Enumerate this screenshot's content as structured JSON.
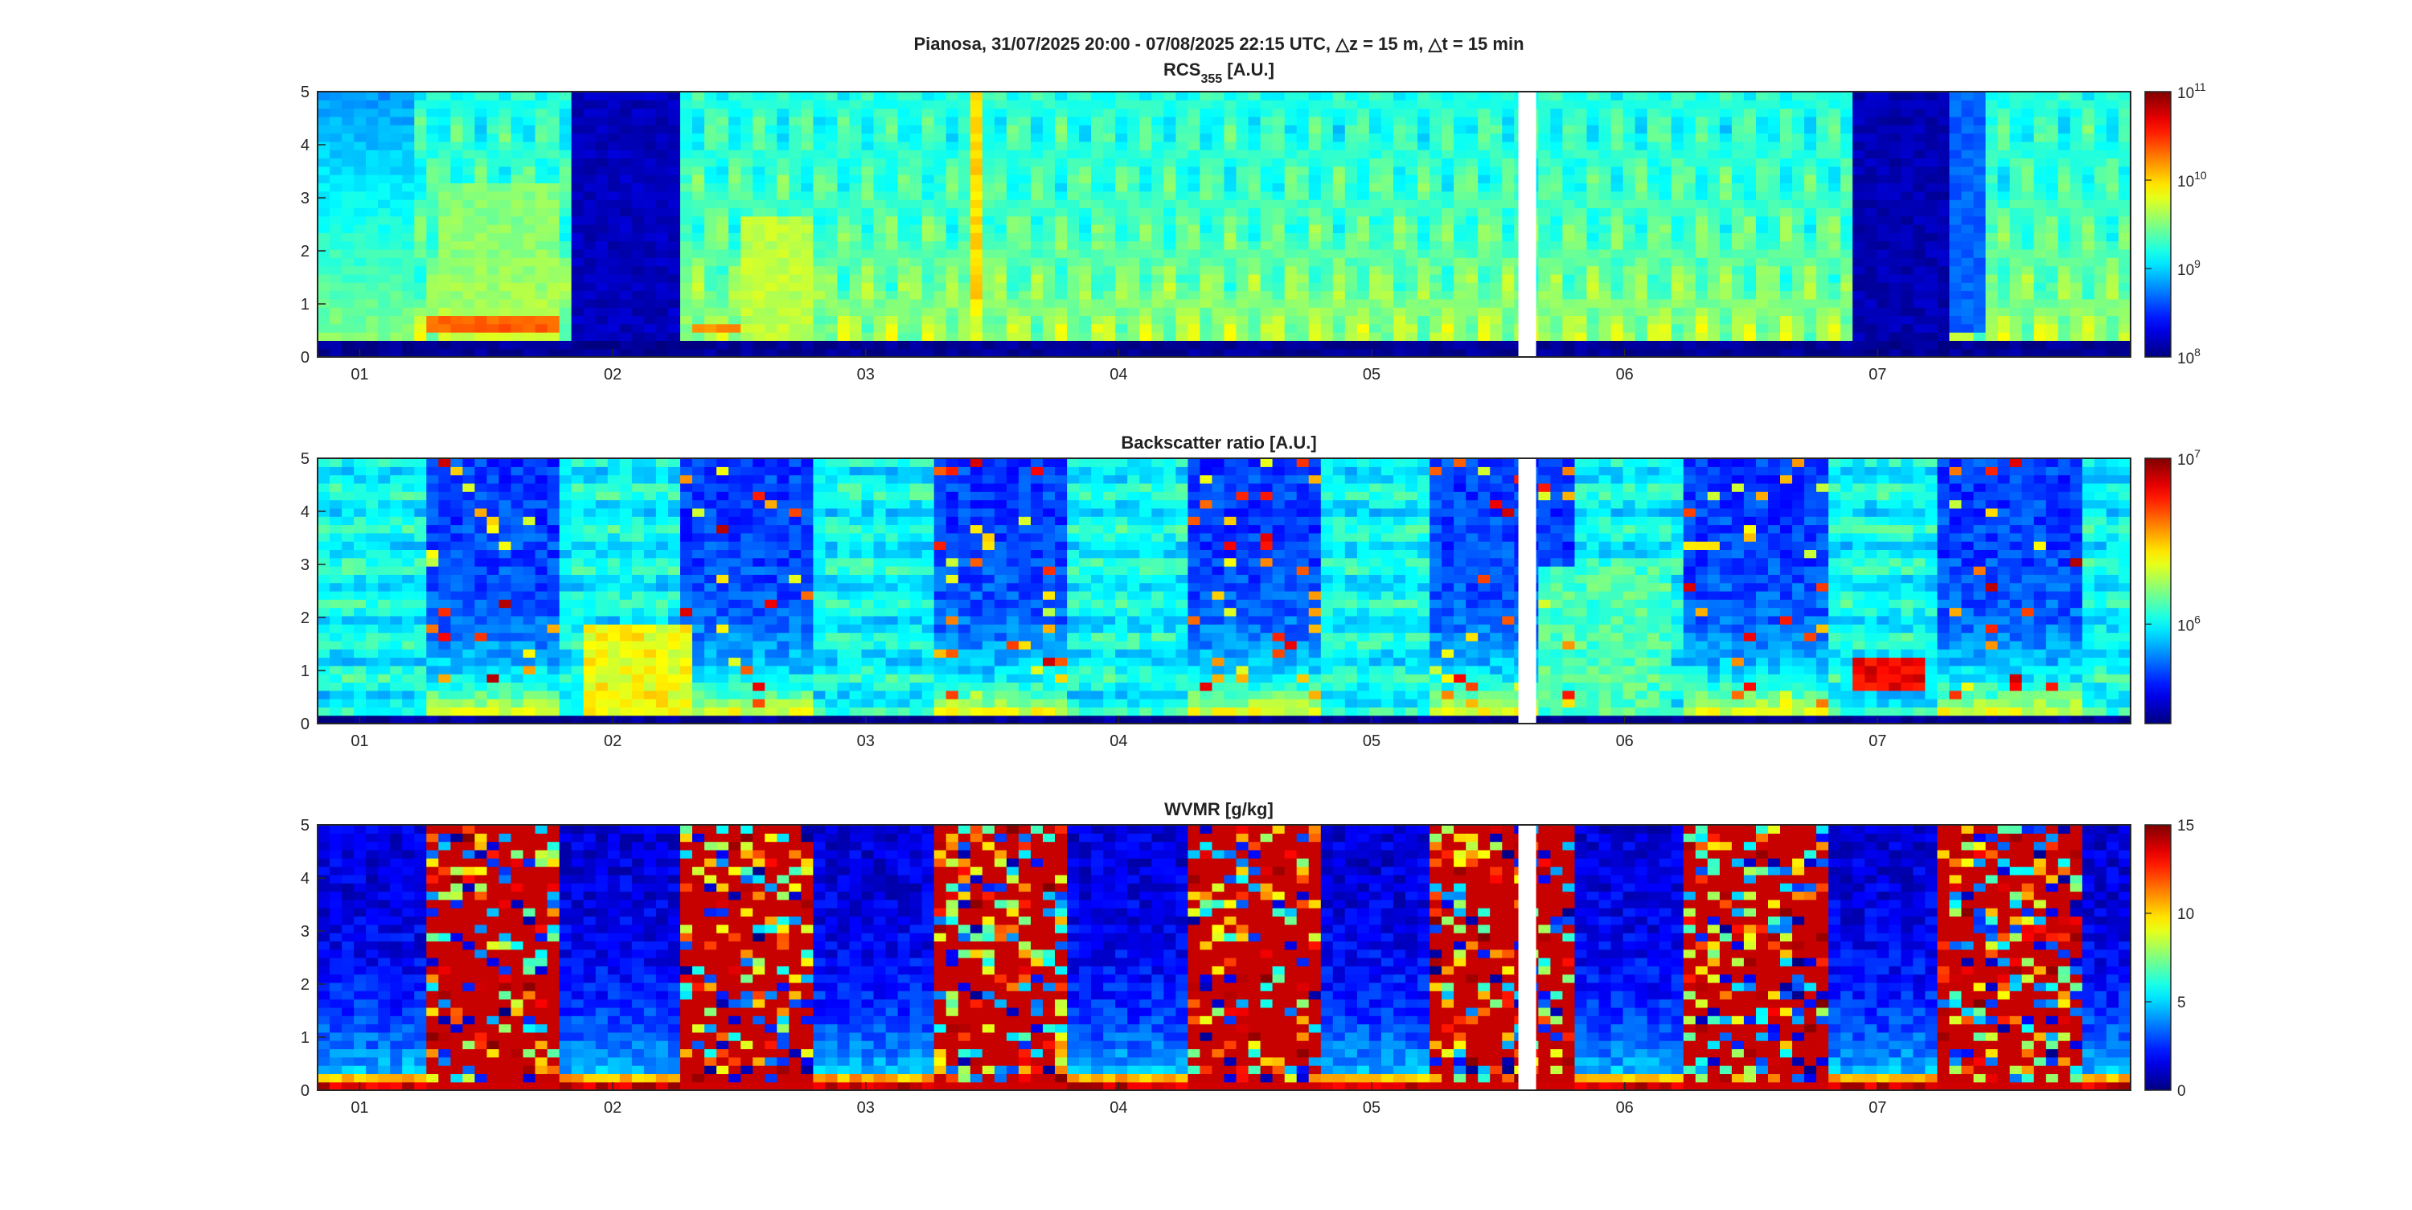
{
  "figure": {
    "title_main": "Pianosa,   31/07/2025 20:00 - 07/08/2025 22:15 UTC,   △z = 15 m, △t = 15 min",
    "subtitle_rcs_prefix": "RCS",
    "subtitle_rcs_sub": "355",
    "subtitle_rcs_suffix": " [A.U.]"
  },
  "colormap": "jet",
  "colors": {
    "gap": "#ffffff",
    "cmap_low": "#00007f",
    "cmap_high": "#7f0000"
  },
  "chart_data": [
    {
      "type": "heatmap",
      "name": "rcs",
      "title": "RCS355 [A.U.]",
      "x_tick_labels": [
        "01",
        "02",
        "03",
        "04",
        "05",
        "06",
        "07"
      ],
      "x_range_days": [
        0.8333,
        8.0
      ],
      "y_range_km": [
        0,
        5
      ],
      "y_ticks": [
        "0",
        "1",
        "2",
        "3",
        "4",
        "5"
      ],
      "data_gap_days": [
        5.58,
        5.65
      ],
      "colorbar": {
        "scale": "log",
        "min": 100000000,
        "max": 100000000000,
        "tick_bases": [
          "10",
          "10",
          "10",
          "10"
        ],
        "tick_exponents": [
          "8",
          "9",
          "10",
          "11"
        ]
      }
    },
    {
      "type": "heatmap",
      "name": "backscatter",
      "title": "Backscatter ratio [A.U.]",
      "x_tick_labels": [
        "01",
        "02",
        "03",
        "04",
        "05",
        "06",
        "07"
      ],
      "x_range_days": [
        0.8333,
        8.0
      ],
      "y_range_km": [
        0,
        5
      ],
      "y_ticks": [
        "0",
        "1",
        "2",
        "3",
        "4",
        "5"
      ],
      "data_gap_days": [
        5.58,
        5.65
      ],
      "colorbar": {
        "scale": "log",
        "max": 10000000,
        "tick_bases": [
          "10",
          "10"
        ],
        "tick_exponents": [
          "6",
          "7"
        ]
      }
    },
    {
      "type": "heatmap",
      "name": "wvmr",
      "title": "WVMR [g/kg]",
      "x_tick_labels": [
        "01",
        "02",
        "03",
        "04",
        "05",
        "06",
        "07"
      ],
      "x_range_days": [
        0.8333,
        8.0
      ],
      "y_range_km": [
        0,
        5
      ],
      "y_ticks": [
        "0",
        "1",
        "2",
        "3",
        "4",
        "5"
      ],
      "data_gap_days": [
        5.58,
        5.65
      ],
      "colorbar": {
        "scale": "linear",
        "min": 0,
        "max": 15,
        "ticks": [
          "0",
          "5",
          "10",
          "15"
        ]
      }
    }
  ]
}
